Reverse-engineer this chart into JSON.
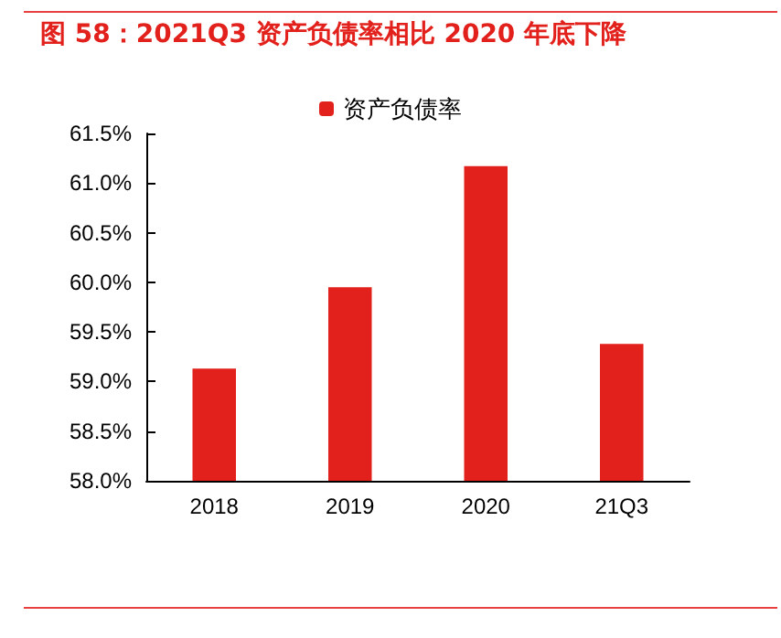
{
  "chart_data": {
    "type": "bar",
    "title": "图 58：2021Q3 资产负债率相比 2020 年底下降",
    "categories": [
      "2018",
      "2019",
      "2020",
      "21Q3"
    ],
    "series": [
      {
        "name": "资产负债率",
        "color": "#e2211c",
        "values": [
          59.13,
          59.95,
          61.17,
          59.38
        ]
      }
    ],
    "ylim": [
      58,
      61.5
    ],
    "yticks": [
      {
        "value": 58,
        "label": "58.0%"
      },
      {
        "value": 58.5,
        "label": "58.5%"
      },
      {
        "value": 59,
        "label": "59.0%"
      },
      {
        "value": 59.5,
        "label": "59.5%"
      },
      {
        "value": 60,
        "label": "60.0%"
      },
      {
        "value": 60.5,
        "label": "60.5%"
      },
      {
        "value": 61,
        "label": "61.0%"
      },
      {
        "value": 61.5,
        "label": "61.5%"
      }
    ],
    "grid": false,
    "legend": "top"
  }
}
